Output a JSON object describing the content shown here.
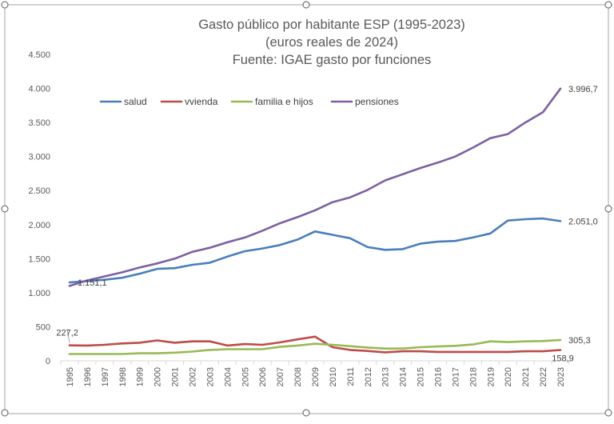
{
  "chart_data": {
    "type": "line",
    "title_lines": [
      "Gasto público por habitante ESP (1995-2023)",
      "(euros reales de 2024)",
      "Fuente: IGAE gasto por funciones"
    ],
    "xlabel": "",
    "ylabel": "",
    "ylim": [
      0,
      4500
    ],
    "grid": false,
    "legend_position": "top-left",
    "y_ticks": [
      0,
      500,
      1000,
      1500,
      2000,
      2500,
      3000,
      3500,
      4000,
      4500
    ],
    "y_tick_labels": [
      "0",
      "500",
      "1.000",
      "1.500",
      "2.000",
      "2.500",
      "3.000",
      "3.500",
      "4.000",
      "4.500"
    ],
    "categories": [
      "1995",
      "1996",
      "1997",
      "1998",
      "1999",
      "2000",
      "2001",
      "2002",
      "2003",
      "2004",
      "2005",
      "2006",
      "2007",
      "2008",
      "2009",
      "2010",
      "2011",
      "2012",
      "2013",
      "2014",
      "2015",
      "2016",
      "2017",
      "2018",
      "2019",
      "2020",
      "2021",
      "2022",
      "2023"
    ],
    "series": [
      {
        "name": "salud",
        "color": "#4a7ebb",
        "values": [
          1151.1,
          1170,
          1190,
          1220,
          1280,
          1350,
          1360,
          1410,
          1440,
          1530,
          1610,
          1650,
          1700,
          1780,
          1900,
          1850,
          1800,
          1670,
          1630,
          1640,
          1720,
          1750,
          1760,
          1810,
          1870,
          2060,
          2080,
          2090,
          2051.0
        ]
      },
      {
        "name": "vvienda",
        "color": "#be4b48",
        "values": [
          227.2,
          225,
          235,
          255,
          265,
          300,
          265,
          285,
          285,
          225,
          245,
          235,
          270,
          315,
          355,
          200,
          160,
          145,
          125,
          140,
          140,
          130,
          130,
          130,
          130,
          130,
          140,
          140,
          158.9
        ]
      },
      {
        "name": "familia e hijos",
        "color": "#98b954",
        "values": [
          100,
          100,
          100,
          100,
          110,
          110,
          120,
          135,
          160,
          170,
          170,
          170,
          205,
          225,
          250,
          235,
          215,
          195,
          180,
          180,
          200,
          210,
          220,
          240,
          285,
          275,
          285,
          290,
          305.3
        ]
      },
      {
        "name": "pensiones",
        "color": "#7d60a0",
        "values": [
          1100,
          1180,
          1240,
          1300,
          1370,
          1430,
          1500,
          1600,
          1660,
          1740,
          1810,
          1910,
          2020,
          2110,
          2210,
          2330,
          2400,
          2510,
          2650,
          2740,
          2830,
          2910,
          3000,
          3130,
          3270,
          3330,
          3500,
          3650,
          3996.7
        ]
      }
    ],
    "data_labels": [
      {
        "series": "salud",
        "index": 0,
        "text": "1.151,1",
        "anchor": "right"
      },
      {
        "series": "vvienda",
        "index": 0,
        "text": "227,2",
        "anchor": "above-left"
      },
      {
        "series": "pensiones",
        "index": 28,
        "text": "3.996,7",
        "anchor": "right"
      },
      {
        "series": "salud",
        "index": 28,
        "text": "2.051,0",
        "anchor": "right"
      },
      {
        "series": "familia e hijos",
        "index": 28,
        "text": "305,3",
        "anchor": "right"
      },
      {
        "series": "vvienda",
        "index": 28,
        "text": "158,9",
        "anchor": "below"
      }
    ]
  }
}
